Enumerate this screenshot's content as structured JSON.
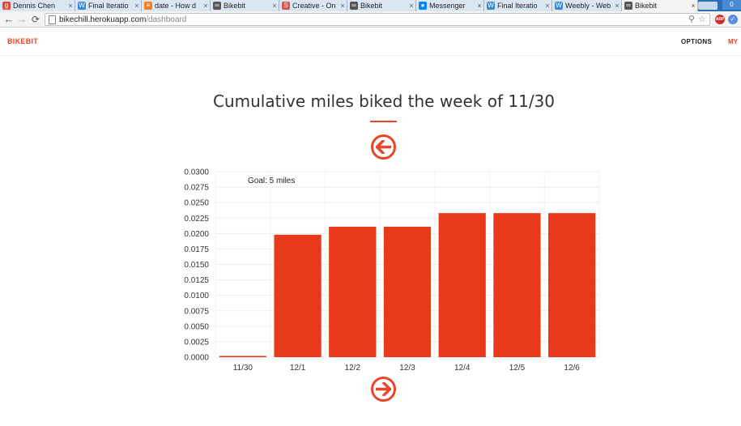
{
  "browser": {
    "tabs": [
      {
        "title": "Dennis Chen",
        "icon": "google-plus-icon",
        "icon_color": "#dd4b39",
        "active": false
      },
      {
        "title": "Final Iteratio",
        "icon": "weebly-icon",
        "icon_color": "#3a8ad6",
        "active": false
      },
      {
        "title": "date - How d",
        "icon": "stackoverflow-icon",
        "icon_color": "#f48024",
        "active": false
      },
      {
        "title": "Bikebit",
        "icon": "bike-icon",
        "icon_color": "#555555",
        "active": false
      },
      {
        "title": "Creative - On",
        "icon": "s-icon",
        "icon_color": "#d9534f",
        "active": false
      },
      {
        "title": "Bikebit",
        "icon": "bike-icon",
        "icon_color": "#555555",
        "active": false
      },
      {
        "title": "Messenger",
        "icon": "messenger-icon",
        "icon_color": "#0084ff",
        "active": false
      },
      {
        "title": "Final Iteratio",
        "icon": "weebly-icon",
        "icon_color": "#3a8ad6",
        "active": false
      },
      {
        "title": "Weebly - Web",
        "icon": "weebly-icon",
        "icon_color": "#3a8ad6",
        "active": false
      },
      {
        "title": "Bikebit",
        "icon": "bike-icon",
        "icon_color": "#555555",
        "active": true
      }
    ],
    "url_host": "bikechill.herokuapp.com",
    "url_path": "/dashboard"
  },
  "app": {
    "brand": "BIKEBIT",
    "nav_options": "OPTIONS",
    "nav_my": "MY",
    "accent": "#e8452a"
  },
  "main": {
    "title": "Cumulative miles biked the week of 11/30",
    "prev_label": "previous-week",
    "next_label": "next-week"
  },
  "chart_data": {
    "type": "bar",
    "categories": [
      "11/30",
      "12/1",
      "12/2",
      "12/3",
      "12/4",
      "12/5",
      "12/6"
    ],
    "values": [
      0.0001,
      0.0198,
      0.0211,
      0.0211,
      0.0233,
      0.0233,
      0.0233
    ],
    "ylim": [
      0,
      0.03
    ],
    "yticks": [
      "0.0000",
      "0.0025",
      "0.0050",
      "0.0075",
      "0.0100",
      "0.0125",
      "0.0150",
      "0.0175",
      "0.0200",
      "0.0225",
      "0.0250",
      "0.0275",
      "0.0300"
    ],
    "annotation": "Goal: 5 miles",
    "bar_color": "#e8391a",
    "grid": true
  }
}
